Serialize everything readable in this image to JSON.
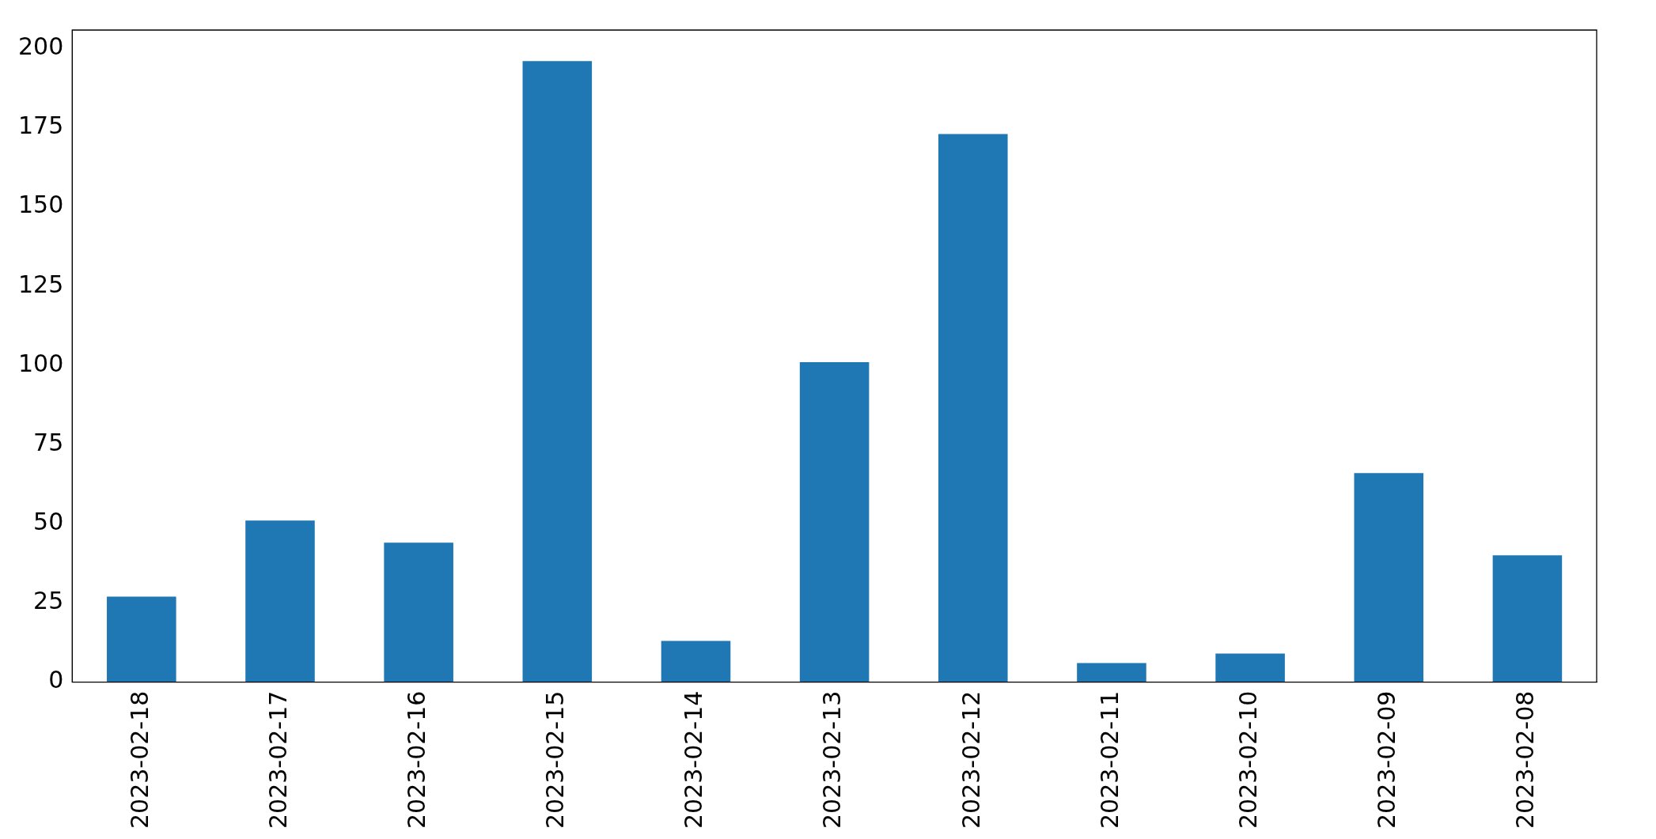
{
  "chart_data": {
    "type": "bar",
    "categories": [
      "2023-02-18",
      "2023-02-17",
      "2023-02-16",
      "2023-02-15",
      "2023-02-14",
      "2023-02-13",
      "2023-02-12",
      "2023-02-11",
      "2023-02-10",
      "2023-02-09",
      "2023-02-08"
    ],
    "values": [
      27,
      51,
      44,
      196,
      13,
      101,
      173,
      6,
      9,
      66,
      40
    ],
    "color": "#1f77b4",
    "ylim": [
      0,
      205.8
    ],
    "yticks": [
      0,
      25,
      50,
      75,
      100,
      125,
      150,
      175,
      200
    ]
  }
}
